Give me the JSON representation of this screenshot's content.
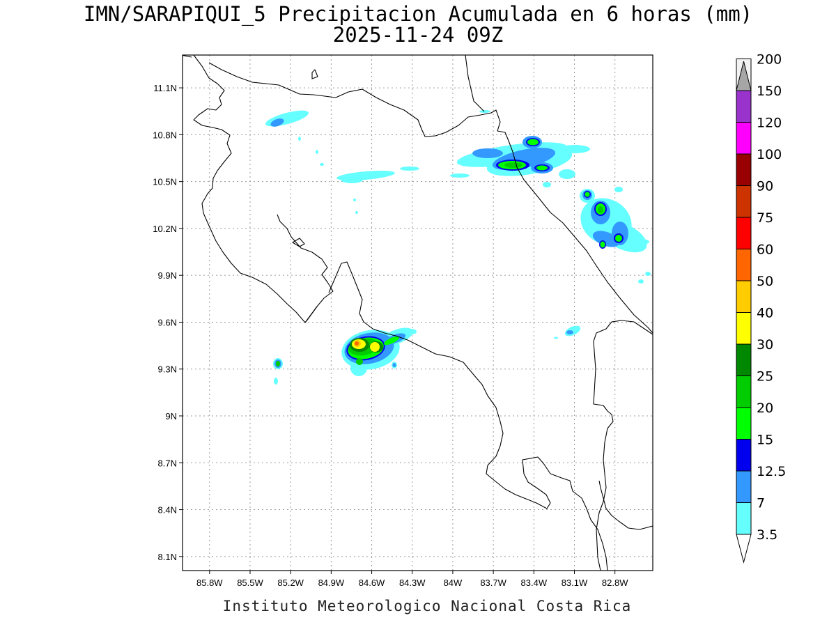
{
  "map": {
    "title_line1": "IMN/SARAPIQUI_5 Precipitacion Acumulada en 6 horas (mm)",
    "title_line2": "2025-11-24 09Z",
    "footer": "Instituto Meteorologico Nacional Costa Rica",
    "lon_labels": [
      "85.8W",
      "85.5W",
      "85.2W",
      "84.9W",
      "84.6W",
      "84.3W",
      "84W",
      "83.7W",
      "83.4W",
      "83.1W",
      "82.8W"
    ],
    "lat_labels": [
      "11.1N",
      "10.8N",
      "10.5N",
      "10.2N",
      "9.9N",
      "9.6N",
      "9.3N",
      "9N",
      "8.7N",
      "8.4N",
      "8.1N"
    ],
    "lon_values": [
      -85.8,
      -85.5,
      -85.2,
      -84.9,
      -84.6,
      -84.3,
      -84.0,
      -83.7,
      -83.4,
      -83.1,
      -82.8
    ],
    "lat_values": [
      11.1,
      10.8,
      10.5,
      10.2,
      9.9,
      9.6,
      9.3,
      9.0,
      8.7,
      8.4,
      8.1
    ],
    "extent": {
      "lon_min": -86.0,
      "lon_max": -82.52,
      "lat_min": 8.01,
      "lat_max": 11.31
    },
    "grid": true
  },
  "legend": {
    "units": "mm",
    "labels": [
      "3.5",
      "7",
      "12.5",
      "15",
      "20",
      "25",
      "30",
      "40",
      "50",
      "60",
      "75",
      "90",
      "100",
      "120",
      "150",
      "200"
    ],
    "colors": [
      "#66ffff",
      "#3399ff",
      "#0000ee",
      "#00ff00",
      "#00cc00",
      "#008800",
      "#ffff00",
      "#ffcc00",
      "#ff6600",
      "#ff0000",
      "#cc3300",
      "#990000",
      "#ff00ff",
      "#9933cc",
      "#f2f2f2",
      "#a6a6a6"
    ]
  }
}
